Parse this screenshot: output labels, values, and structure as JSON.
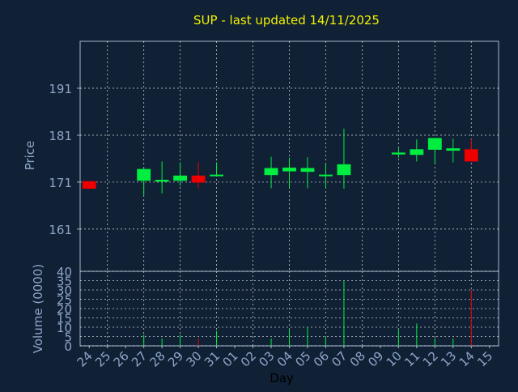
{
  "chart_data": {
    "type": "candlestick",
    "title": "SUP - last updated 14/11/2025",
    "xlabel": "Day",
    "price_panel": {
      "ylabel": "Price",
      "ylim": [
        152,
        201
      ],
      "yticks": [
        161,
        171,
        181,
        191
      ],
      "grid": true
    },
    "volume_panel": {
      "ylabel": "Volume (0000)",
      "ylim": [
        0,
        40
      ],
      "yticks": [
        0,
        5,
        10,
        15,
        20,
        25,
        30,
        35,
        40
      ],
      "grid": true
    },
    "categories": [
      "24",
      "25",
      "26",
      "27",
      "28",
      "29",
      "30",
      "31",
      "01",
      "02",
      "03",
      "04",
      "05",
      "06",
      "07",
      "08",
      "09",
      "10",
      "11",
      "12",
      "13",
      "14",
      "15"
    ],
    "candles": [
      {
        "day": "24",
        "open": 171.2,
        "high": 171.2,
        "low": 169.6,
        "close": 169.6,
        "volume": 0
      },
      {
        "day": "27",
        "open": 171.3,
        "high": 174.2,
        "low": 168.1,
        "close": 173.8,
        "volume": 6
      },
      {
        "day": "28",
        "open": 171.1,
        "high": 175.4,
        "low": 168.6,
        "close": 171.5,
        "volume": 4
      },
      {
        "day": "29",
        "open": 171.3,
        "high": 175.2,
        "low": 170.2,
        "close": 172.4,
        "volume": 6
      },
      {
        "day": "30",
        "open": 172.4,
        "high": 175.3,
        "low": 169.7,
        "close": 170.9,
        "volume": 4
      },
      {
        "day": "31",
        "open": 172.3,
        "high": 175.2,
        "low": 172.3,
        "close": 172.6,
        "volume": 8
      },
      {
        "day": "03",
        "open": 172.5,
        "high": 176.4,
        "low": 169.7,
        "close": 174.0,
        "volume": 4
      },
      {
        "day": "04",
        "open": 173.3,
        "high": 176.2,
        "low": 169.7,
        "close": 174.1,
        "volume": 9
      },
      {
        "day": "05",
        "open": 173.2,
        "high": 176.3,
        "low": 169.7,
        "close": 174.0,
        "volume": 10
      },
      {
        "day": "06",
        "open": 172.4,
        "high": 174.9,
        "low": 169.6,
        "close": 172.6,
        "volume": 5
      },
      {
        "day": "07",
        "open": 172.5,
        "high": 182.4,
        "low": 169.6,
        "close": 174.8,
        "volume": 35
      },
      {
        "day": "10",
        "open": 176.9,
        "high": 178.2,
        "low": 176.2,
        "close": 177.3,
        "volume": 9
      },
      {
        "day": "11",
        "open": 176.8,
        "high": 180.1,
        "low": 175.4,
        "close": 178.0,
        "volume": 12
      },
      {
        "day": "12",
        "open": 177.9,
        "high": 180.4,
        "low": 174.8,
        "close": 180.4,
        "volume": 4
      },
      {
        "day": "13",
        "open": 177.7,
        "high": 180.3,
        "low": 175.2,
        "close": 178.2,
        "volume": 4
      },
      {
        "day": "14",
        "open": 178.0,
        "high": 180.2,
        "low": 175.4,
        "close": 175.4,
        "volume": 30
      }
    ],
    "colors": {
      "background": "#102035",
      "axis": "#a9b8cc",
      "grid": "#ffffff",
      "title": "#f2f200",
      "label": "#8ea6c8",
      "up": "#00ee40",
      "down": "#ee0000"
    }
  }
}
